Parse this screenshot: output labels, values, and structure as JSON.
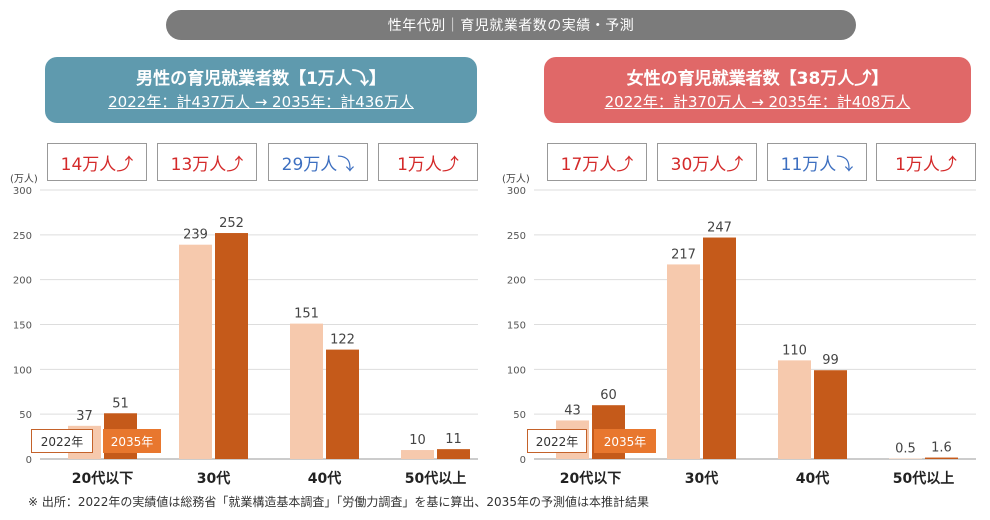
{
  "page_title": "性年代別｜育児就業者数の実績・予測",
  "colors": {
    "bar_2022": "#f6c9ad",
    "bar_2035": "#c55a1a",
    "up": "#d42a2a",
    "down": "#3d6fc0",
    "grid": "#dddddd"
  },
  "male": {
    "title": "男性の育児就業者数【1万人⤵】",
    "subtitle": "2022年：計437万人 → 2035年：計436万人",
    "changes": [
      {
        "label": "14万人⤴",
        "dir": "up"
      },
      {
        "label": "13万人⤴",
        "dir": "up"
      },
      {
        "label": "29万人⤵",
        "dir": "down"
      },
      {
        "label": "1万人⤴",
        "dir": "up"
      }
    ]
  },
  "female": {
    "title": "女性の育児就業者数【38万人⤴】",
    "subtitle": "2022年：計370万人 → 2035年：計408万人",
    "changes": [
      {
        "label": "17万人⤴",
        "dir": "up"
      },
      {
        "label": "30万人⤴",
        "dir": "up"
      },
      {
        "label": "11万人⤵",
        "dir": "down"
      },
      {
        "label": "1万人⤴",
        "dir": "up"
      }
    ]
  },
  "legend": {
    "y2022": "2022年",
    "y2035": "2035年"
  },
  "chart_data": [
    {
      "type": "bar",
      "title": "男性の育児就業者数",
      "unit_label": "(万人)",
      "categories": [
        "20代以下",
        "30代",
        "40代",
        "50代以上"
      ],
      "series": [
        {
          "name": "2022年",
          "values": [
            37,
            239,
            151,
            10
          ],
          "labels": [
            "37",
            "239",
            "151",
            "10"
          ]
        },
        {
          "name": "2035年",
          "values": [
            51,
            252,
            122,
            11
          ],
          "labels": [
            "51",
            "252",
            "122",
            "11"
          ]
        }
      ],
      "ylim": [
        0,
        300
      ],
      "yticks": [
        0,
        50,
        100,
        150,
        200,
        250,
        300
      ],
      "grid": true
    },
    {
      "type": "bar",
      "title": "女性の育児就業者数",
      "unit_label": "(万人)",
      "categories": [
        "20代以下",
        "30代",
        "40代",
        "50代以上"
      ],
      "series": [
        {
          "name": "2022年",
          "values": [
            43,
            217,
            110,
            0.5
          ],
          "labels": [
            "43",
            "217",
            "110",
            "0.5"
          ]
        },
        {
          "name": "2035年",
          "values": [
            60,
            247,
            99,
            1.6
          ],
          "labels": [
            "60",
            "247",
            "99",
            "1.6"
          ]
        }
      ],
      "ylim": [
        0,
        300
      ],
      "yticks": [
        0,
        50,
        100,
        150,
        200,
        250,
        300
      ],
      "grid": true
    }
  ],
  "footnote": "※ 出所：2022年の実績値は総務省「就業構造基本調査」「労働力調査」を基に算出、2035年の予測値は本推計結果"
}
